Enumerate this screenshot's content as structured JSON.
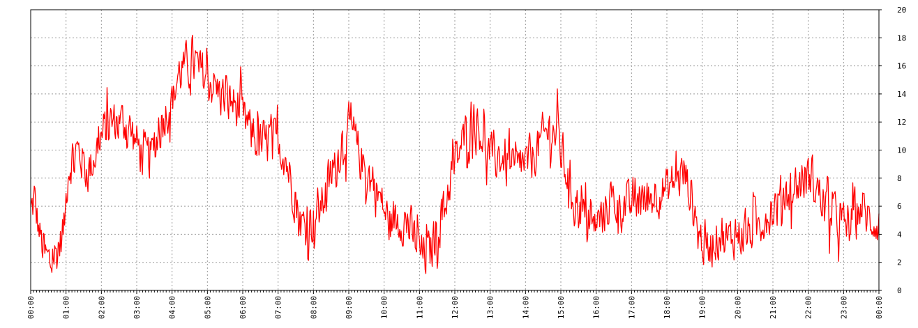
{
  "chart_data": {
    "type": "line",
    "title": "",
    "xlabel": "",
    "ylabel": "",
    "x_ticks": [
      "00:00",
      "01:00",
      "02:00",
      "03:00",
      "04:00",
      "05:00",
      "06:00",
      "07:00",
      "08:00",
      "09:00",
      "10:00",
      "11:00",
      "12:00",
      "13:00",
      "14:00",
      "15:00",
      "16:00",
      "17:00",
      "18:00",
      "19:00",
      "20:00",
      "21:00",
      "22:00",
      "23:00",
      "00:00"
    ],
    "y_ticks": [
      "0",
      "2",
      "4",
      "6",
      "8",
      "10",
      "12",
      "14",
      "16",
      "18",
      "20"
    ],
    "ylim": [
      0,
      20
    ],
    "xlim_hours": [
      0,
      24
    ],
    "y_axis_position": "right",
    "grid": true,
    "legend": "none",
    "line_color": "#ff0000",
    "grid_color": "#9a9a9a",
    "series": [
      {
        "anchors": [
          [
            0.0,
            5.5
          ],
          [
            0.1,
            6.5
          ],
          [
            0.25,
            4.0
          ],
          [
            0.4,
            2.5
          ],
          [
            0.55,
            2.0
          ],
          [
            0.7,
            2.5
          ],
          [
            0.85,
            3.5
          ],
          [
            0.95,
            4.5
          ],
          [
            1.05,
            8.5
          ],
          [
            1.2,
            9.5
          ],
          [
            1.35,
            10.0
          ],
          [
            1.5,
            9.0
          ],
          [
            1.65,
            8.5
          ],
          [
            1.8,
            9.5
          ],
          [
            1.95,
            10.5
          ],
          [
            2.1,
            11.5
          ],
          [
            2.3,
            12.0
          ],
          [
            2.5,
            12.0
          ],
          [
            2.7,
            12.0
          ],
          [
            2.9,
            11.0
          ],
          [
            3.1,
            10.0
          ],
          [
            3.3,
            9.5
          ],
          [
            3.5,
            10.0
          ],
          [
            3.7,
            12.0
          ],
          [
            3.9,
            13.0
          ],
          [
            4.05,
            14.0
          ],
          [
            4.2,
            15.5
          ],
          [
            4.4,
            16.0
          ],
          [
            4.55,
            16.5
          ],
          [
            4.7,
            16.0
          ],
          [
            4.85,
            15.5
          ],
          [
            5.0,
            15.0
          ],
          [
            5.2,
            14.5
          ],
          [
            5.4,
            14.0
          ],
          [
            5.55,
            13.5
          ],
          [
            5.7,
            13.5
          ],
          [
            5.85,
            13.0
          ],
          [
            6.0,
            12.5
          ],
          [
            6.2,
            11.5
          ],
          [
            6.4,
            10.5
          ],
          [
            6.6,
            10.5
          ],
          [
            6.8,
            11.0
          ],
          [
            7.0,
            10.5
          ],
          [
            7.2,
            9.5
          ],
          [
            7.4,
            7.5
          ],
          [
            7.6,
            5.0
          ],
          [
            7.8,
            4.5
          ],
          [
            8.0,
            5.0
          ],
          [
            8.2,
            6.0
          ],
          [
            8.4,
            7.5
          ],
          [
            8.6,
            8.5
          ],
          [
            8.8,
            10.5
          ],
          [
            9.0,
            11.5
          ],
          [
            9.15,
            11.0
          ],
          [
            9.3,
            9.5
          ],
          [
            9.5,
            8.5
          ],
          [
            9.7,
            7.5
          ],
          [
            9.9,
            6.5
          ],
          [
            10.1,
            5.0
          ],
          [
            10.3,
            5.0
          ],
          [
            10.5,
            5.0
          ],
          [
            10.7,
            4.5
          ],
          [
            10.9,
            3.5
          ],
          [
            11.1,
            2.5
          ],
          [
            11.25,
            2.5
          ],
          [
            11.4,
            3.5
          ],
          [
            11.6,
            5.0
          ],
          [
            11.8,
            7.0
          ],
          [
            12.0,
            9.0
          ],
          [
            12.2,
            10.5
          ],
          [
            12.4,
            11.5
          ],
          [
            12.55,
            12.5
          ],
          [
            12.7,
            11.5
          ],
          [
            12.9,
            10.0
          ],
          [
            13.1,
            9.5
          ],
          [
            13.3,
            9.5
          ],
          [
            13.5,
            9.0
          ],
          [
            13.7,
            8.5
          ],
          [
            13.9,
            9.0
          ],
          [
            14.1,
            9.0
          ],
          [
            14.3,
            10.0
          ],
          [
            14.5,
            11.0
          ],
          [
            14.7,
            11.5
          ],
          [
            14.9,
            11.0
          ],
          [
            15.1,
            9.0
          ],
          [
            15.3,
            7.0
          ],
          [
            15.5,
            6.0
          ],
          [
            15.7,
            5.0
          ],
          [
            15.9,
            4.5
          ],
          [
            16.1,
            5.0
          ],
          [
            16.3,
            6.0
          ],
          [
            16.5,
            6.5
          ],
          [
            16.7,
            6.0
          ],
          [
            16.9,
            6.0
          ],
          [
            17.1,
            6.5
          ],
          [
            17.3,
            6.5
          ],
          [
            17.5,
            6.5
          ],
          [
            17.7,
            7.0
          ],
          [
            17.9,
            7.0
          ],
          [
            18.1,
            7.5
          ],
          [
            18.3,
            8.0
          ],
          [
            18.5,
            8.5
          ],
          [
            18.7,
            6.5
          ],
          [
            18.9,
            4.0
          ],
          [
            19.1,
            3.0
          ],
          [
            19.3,
            3.5
          ],
          [
            19.5,
            4.0
          ],
          [
            19.7,
            3.5
          ],
          [
            19.9,
            4.0
          ],
          [
            20.1,
            4.0
          ],
          [
            20.3,
            4.0
          ],
          [
            20.5,
            4.5
          ],
          [
            20.7,
            5.0
          ],
          [
            20.9,
            5.5
          ],
          [
            21.1,
            6.0
          ],
          [
            21.3,
            7.0
          ],
          [
            21.5,
            7.0
          ],
          [
            21.7,
            7.5
          ],
          [
            21.9,
            8.0
          ],
          [
            22.1,
            8.0
          ],
          [
            22.3,
            7.0
          ],
          [
            22.5,
            6.0
          ],
          [
            22.7,
            5.5
          ],
          [
            22.9,
            5.0
          ],
          [
            23.1,
            4.5
          ],
          [
            23.3,
            5.0
          ],
          [
            23.5,
            6.0
          ],
          [
            23.7,
            5.0
          ],
          [
            23.85,
            5.0
          ],
          [
            24.0,
            4.5
          ]
        ],
        "noise_amplitude": 1.4,
        "samples": 1200
      }
    ]
  }
}
